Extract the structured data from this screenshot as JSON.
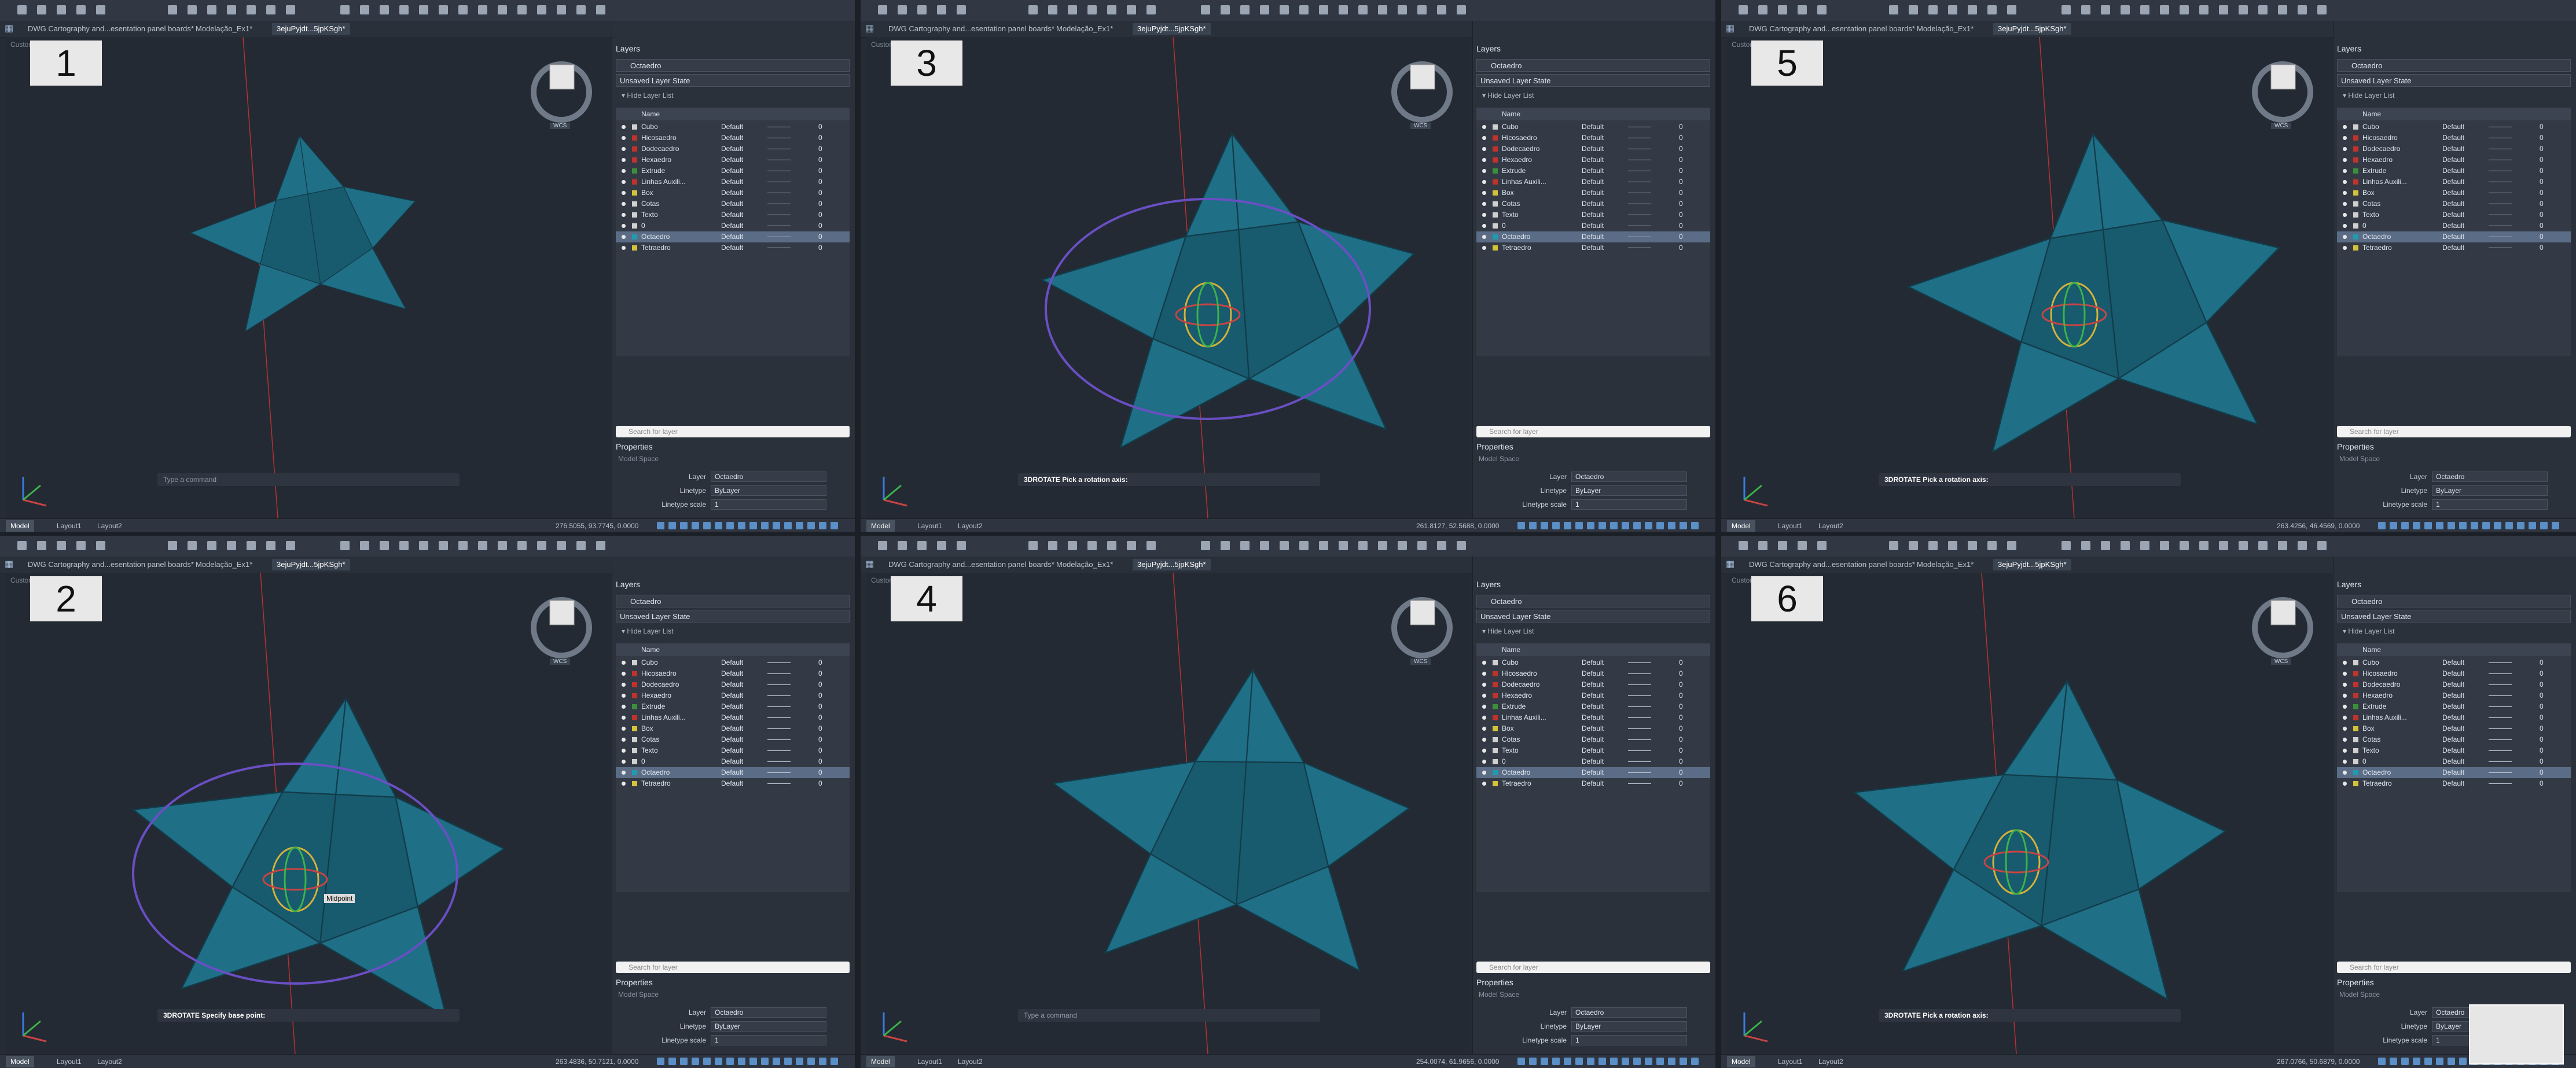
{
  "panels": [
    {
      "badge": "1",
      "coords": "276.5055, 93.7745, 0.0000",
      "command_text": "Type a command",
      "command_active": false,
      "show_ring": false,
      "show_gizmo": false,
      "gizmo_label": ""
    },
    {
      "badge": "2",
      "coords": "263.4836, 50.7121, 0.0000",
      "command_text": "3DROTATE Specify base point:",
      "command_active": true,
      "show_ring": true,
      "show_gizmo": true,
      "gizmo_label": "Midpoint"
    },
    {
      "badge": "3",
      "coords": "261.8127, 52.5688, 0.0000",
      "command_text": "3DROTATE Pick a rotation axis:",
      "command_active": true,
      "show_ring": true,
      "show_gizmo": true,
      "gizmo_label": ""
    },
    {
      "badge": "4",
      "coords": "254.0074, 61.9656, 0.0000",
      "command_text": "Type a command",
      "command_active": false,
      "show_ring": false,
      "show_gizmo": false,
      "gizmo_label": ""
    },
    {
      "badge": "5",
      "coords": "263.4256, 46.4569, 0.0000",
      "command_text": "3DROTATE Pick a rotation axis:",
      "command_active": true,
      "show_ring": false,
      "show_gizmo": true,
      "gizmo_label": ""
    },
    {
      "badge": "6",
      "coords": "267.0766, 50.6879, 0.0000",
      "command_text": "3DROTATE Pick a rotation axis:",
      "command_active": true,
      "show_ring": false,
      "show_gizmo": true,
      "gizmo_label": ""
    }
  ],
  "tabs": [
    "DWG Cartography and...esentation panel boards*",
    "Modelação_Ex1*",
    "3ejuPyjdt...5jpKSgh*"
  ],
  "viewport_label": "Custom View, Conceptual",
  "viewcube_label": "WCS",
  "side": {
    "layers_title": "Layers",
    "current_layer": "Octaedro",
    "layer_state": "Unsaved Layer State",
    "hide_list": "Hide Layer List",
    "col_name": "Name",
    "rows": [
      {
        "name": "Cubo",
        "lt": "Default",
        "color": "#d0d0d0"
      },
      {
        "name": "Hicosaedro",
        "lt": "Default",
        "color": "#c0322c"
      },
      {
        "name": "Dodecaedro",
        "lt": "Default",
        "color": "#c0322c"
      },
      {
        "name": "Hexaedro",
        "lt": "Default",
        "color": "#c0322c"
      },
      {
        "name": "Extrude",
        "lt": "Default",
        "color": "#3b8f3b"
      },
      {
        "name": "Linhas Auxili...",
        "lt": "Default",
        "color": "#c0322c"
      },
      {
        "name": "Box",
        "lt": "Default",
        "color": "#d4c23a"
      },
      {
        "name": "Cotas",
        "lt": "Default",
        "color": "#d0d0d0"
      },
      {
        "name": "Texto",
        "lt": "Default",
        "color": "#d0d0d0"
      },
      {
        "name": "0",
        "lt": "Default",
        "color": "#d0d0d0"
      },
      {
        "name": "Octaedro",
        "lt": "Default",
        "color": "#1f9bb0"
      },
      {
        "name": "Tetraedro",
        "lt": "Default",
        "color": "#d4c23a"
      }
    ],
    "zero": "0",
    "search_placeholder": "Search for layer",
    "props_title": "Properties",
    "model_space": "Model Space",
    "prop_layer_label": "Layer",
    "prop_layer_val": "Octaedro",
    "prop_lt_label": "Linetype",
    "prop_lt_val": "ByLayer",
    "prop_lts_label": "Linetype scale",
    "prop_lts_val": "1"
  },
  "status": {
    "model": "Model",
    "layout1": "Layout1",
    "layout2": "Layout2"
  },
  "colors": {
    "fill": "#1f6f86",
    "edge": "#123c4a",
    "ring": "#6a4fc4",
    "axis": "#b83232"
  }
}
